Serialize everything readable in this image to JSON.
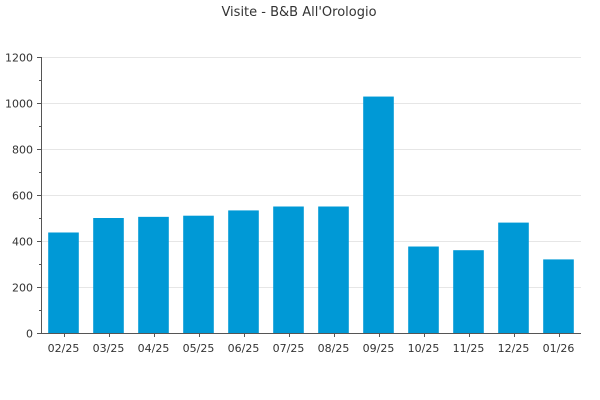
{
  "chart_data": {
    "type": "bar",
    "title": "Visite - B&B All'Orologio",
    "xlabel": "",
    "ylabel": "",
    "categories": [
      "02/25",
      "03/25",
      "04/25",
      "05/25",
      "06/25",
      "07/25",
      "08/25",
      "09/25",
      "10/25",
      "11/25",
      "12/25",
      "01/26"
    ],
    "values": [
      437,
      500,
      505,
      510,
      533,
      550,
      550,
      1028,
      376,
      360,
      480,
      320
    ],
    "ylim": [
      0,
      1200
    ],
    "yticks": [
      0,
      200,
      400,
      600,
      800,
      1000,
      1200
    ],
    "grid": true,
    "legend": "none",
    "bar_color": "#0099d6"
  }
}
